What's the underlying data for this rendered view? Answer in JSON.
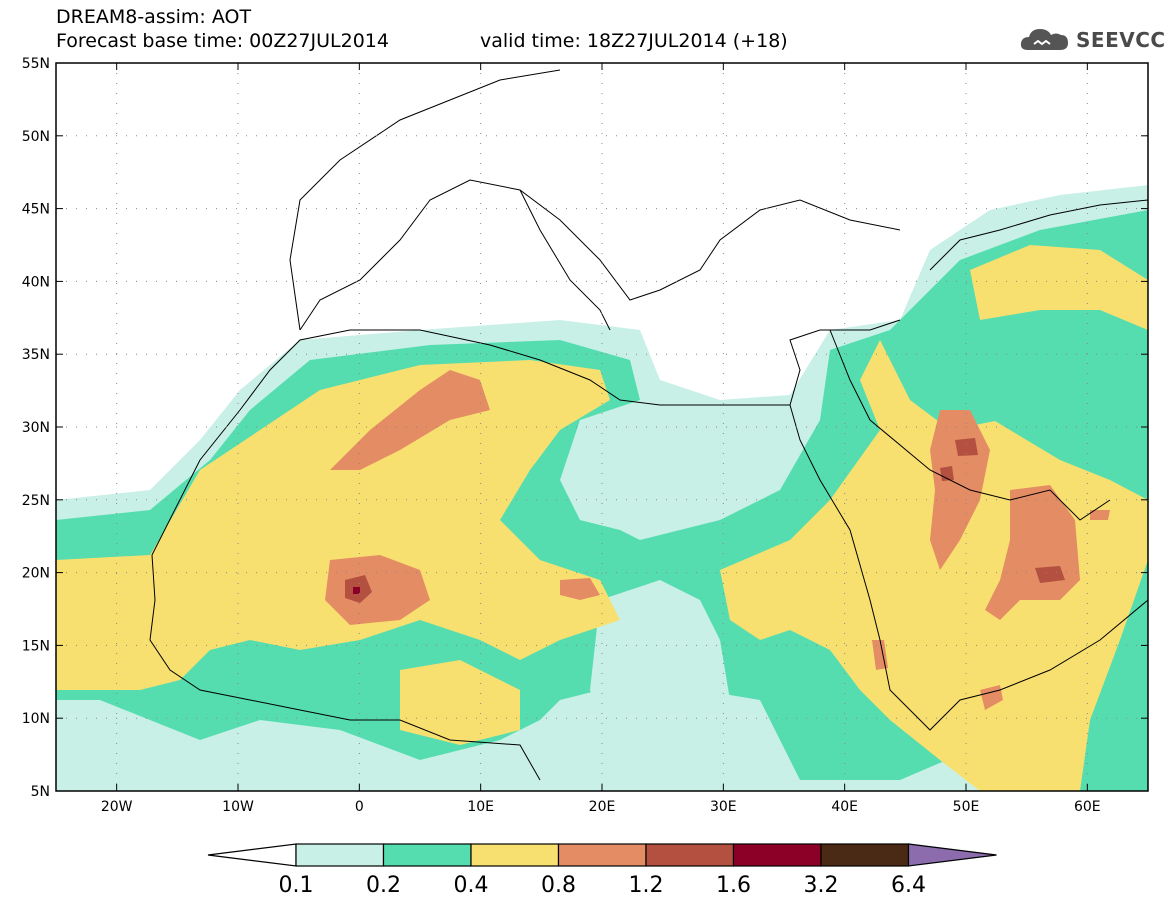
{
  "header": {
    "title": "DREAM8-assim: AOT",
    "base_time": "Forecast base time: 00Z27JUL2014",
    "valid_time": "valid time: 18Z27JUL2014 (+18)"
  },
  "logo": {
    "text": "SEEVCCC",
    "icon": "cloud-icon"
  },
  "axes": {
    "lon_min": -25,
    "lon_max": 65,
    "lat_min": 5,
    "lat_max": 55,
    "lat_ticks": [
      {
        "v": 55,
        "label": "55N"
      },
      {
        "v": 50,
        "label": "50N"
      },
      {
        "v": 45,
        "label": "45N"
      },
      {
        "v": 40,
        "label": "40N"
      },
      {
        "v": 35,
        "label": "35N"
      },
      {
        "v": 30,
        "label": "30N"
      },
      {
        "v": 25,
        "label": "25N"
      },
      {
        "v": 20,
        "label": "20N"
      },
      {
        "v": 15,
        "label": "15N"
      },
      {
        "v": 10,
        "label": "10N"
      },
      {
        "v": 5,
        "label": "5N"
      }
    ],
    "lon_ticks": [
      {
        "v": -20,
        "label": "20W"
      },
      {
        "v": -10,
        "label": "10W"
      },
      {
        "v": 0,
        "label": "0"
      },
      {
        "v": 10,
        "label": "10E"
      },
      {
        "v": 20,
        "label": "20E"
      },
      {
        "v": 30,
        "label": "30E"
      },
      {
        "v": 40,
        "label": "40E"
      },
      {
        "v": 50,
        "label": "50E"
      },
      {
        "v": 60,
        "label": "60E"
      }
    ],
    "grid": "dotted"
  },
  "colorbar": {
    "labels": [
      "0.1",
      "0.2",
      "0.4",
      "0.8",
      "1.2",
      "1.6",
      "3.2",
      "6.4"
    ],
    "colors": [
      "#c8f0e6",
      "#55ddb0",
      "#f8e070",
      "#e48c64",
      "#b45040",
      "#8c0028",
      "#4a2a14",
      "#8c6cac"
    ]
  }
}
